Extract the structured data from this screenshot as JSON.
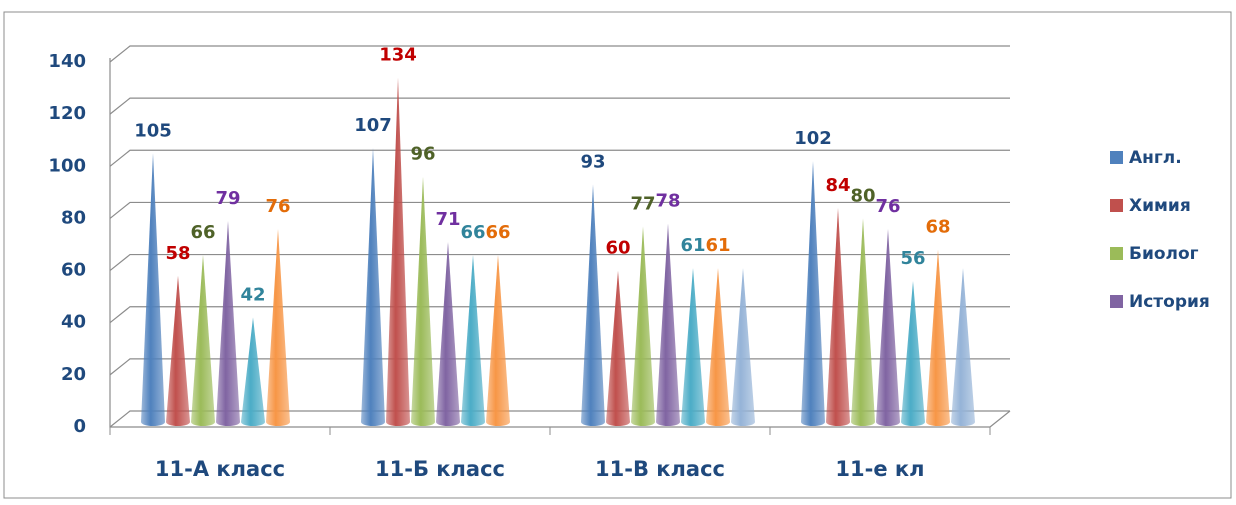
{
  "chart_data": {
    "type": "cone",
    "categories": [
      "11-А класс",
      "11-Б класс",
      "11-В класс",
      "11-е кл"
    ],
    "series": [
      {
        "name": "Англ.",
        "color": "#4f81bd",
        "label_color": "#1f497d",
        "values": [
          105,
          107,
          93,
          102
        ]
      },
      {
        "name": "Химия",
        "color": "#c0504d",
        "label_color": "#c00000",
        "values": [
          58,
          134,
          60,
          84
        ]
      },
      {
        "name": "Биолог",
        "color": "#9bbb59",
        "label_color": "#4f6228",
        "values": [
          66,
          96,
          77,
          80
        ]
      },
      {
        "name": "История",
        "color": "#8064a2",
        "label_color": "#7030a0",
        "values": [
          79,
          71,
          78,
          76
        ]
      },
      {
        "color": "#4bacc6",
        "label_color": "#31849b",
        "values": [
          42,
          66,
          61,
          56
        ]
      },
      {
        "color": "#f79646",
        "label_color": "#e36c09",
        "values": [
          76,
          66,
          61,
          68
        ]
      },
      {
        "color": "#95b3d7",
        "data_labels": false,
        "values": [
          null,
          null,
          61,
          61
        ]
      }
    ],
    "ylim": [
      0,
      140
    ],
    "yticks": [
      0,
      20,
      40,
      60,
      80,
      100,
      120,
      140
    ],
    "grid": true,
    "legend": "right"
  }
}
